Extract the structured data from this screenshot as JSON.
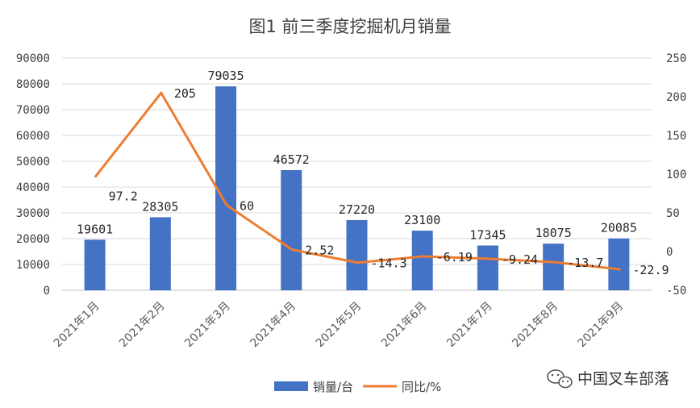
{
  "chart_data": {
    "type": "bar+line",
    "title": "图1   前三季度挖掘机月销量",
    "categories": [
      "2021年1月",
      "2021年2月",
      "2021年3月",
      "2021年4月",
      "2021年5月",
      "2021年6月",
      "2021年7月",
      "2021年8月",
      "2021年9月"
    ],
    "series": [
      {
        "name": "销量/台",
        "type": "bar",
        "axis": "left",
        "color": "#4472C4",
        "values": [
          19601,
          28305,
          79035,
          46572,
          27220,
          23100,
          17345,
          18075,
          20085
        ],
        "labels": [
          "19601",
          "28305",
          "79035",
          "46572",
          "27220",
          "23100",
          "17345",
          "18075",
          "20085"
        ]
      },
      {
        "name": "同比/%",
        "type": "line",
        "axis": "right",
        "color": "#ED7D31",
        "values": [
          97.2,
          205,
          60,
          2.52,
          -14.3,
          -6.19,
          -9.24,
          -13.7,
          -22.9
        ],
        "labels": [
          "97.2",
          "205",
          "60",
          "2.52",
          "-14.3",
          "-6.19",
          "-9.24",
          "-13.7",
          "-22.9"
        ]
      }
    ],
    "y_left": {
      "min": 0,
      "max": 90000,
      "ticks": [
        "0",
        "10000",
        "20000",
        "30000",
        "40000",
        "50000",
        "60000",
        "70000",
        "80000",
        "90000"
      ]
    },
    "y_right": {
      "min": -50,
      "max": 250,
      "ticks": [
        "-50",
        "0",
        "50",
        "100",
        "150",
        "200",
        "250"
      ]
    },
    "grid": true,
    "legend_position": "bottom-center"
  },
  "watermark": {
    "icon": "wechat-icon",
    "text": "中国叉车部落"
  }
}
